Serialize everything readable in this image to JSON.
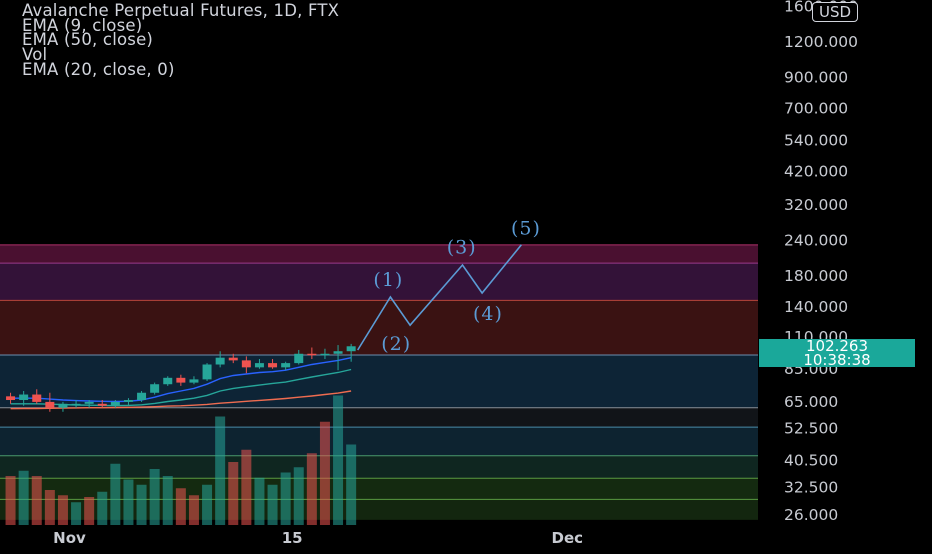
{
  "legend": {
    "title": "Avalanche Perpetual Futures, 1D, FTX",
    "ind1": "EMA (9, close)",
    "ind2": "EMA (50, close)",
    "ind3": "Vol",
    "ind4": "EMA (20, close, 0)"
  },
  "currency": "USD",
  "price_badge": {
    "price": "102.263",
    "countdown": "10:38:38"
  },
  "colors": {
    "up": "#26a69a",
    "down": "#ef5350",
    "ema_fast": "#2962ff",
    "ema_mid": "#26a69a",
    "ema_slow": "#ef6c50",
    "wave": "#5b9bd5"
  },
  "chart_data": {
    "type": "candlestick",
    "y_scale": "log",
    "y_ticks": [
      "1600.000",
      "1200.000",
      "900.000",
      "700.000",
      "540.000",
      "420.000",
      "320.000",
      "240.000",
      "180.000",
      "140.000",
      "110.000",
      "85.000",
      "65.000",
      "52.500",
      "40.500",
      "32.500",
      "26.000"
    ],
    "x_ticks": [
      {
        "label": "Nov",
        "day": 5
      },
      {
        "label": "15",
        "day": 22
      },
      {
        "label": "Dec",
        "day": 43
      }
    ],
    "bands": [
      {
        "from": 200,
        "to": 232,
        "color": "#4a1030"
      },
      {
        "from": 148,
        "to": 200,
        "color": "#331238"
      },
      {
        "from": 95,
        "to": 148,
        "color": "#3a1212"
      },
      {
        "from": 62,
        "to": 95,
        "color": "#0d2436"
      },
      {
        "from": 53,
        "to": 62,
        "color": "#111418"
      },
      {
        "from": 42,
        "to": 53,
        "color": "#0d2330"
      },
      {
        "from": 35,
        "to": 42,
        "color": "#0f2620"
      },
      {
        "from": 29.5,
        "to": 35,
        "color": "#142a10"
      },
      {
        "from": 25,
        "to": 29.5,
        "color": "#13260f"
      }
    ],
    "band_lines": [
      232,
      200,
      148,
      95,
      62,
      53,
      42,
      35,
      29.5
    ],
    "candles": [
      {
        "o": 68,
        "h": 70,
        "l": 64,
        "c": 66
      },
      {
        "o": 66,
        "h": 71,
        "l": 63,
        "c": 69
      },
      {
        "o": 69,
        "h": 72,
        "l": 64,
        "c": 65
      },
      {
        "o": 65,
        "h": 70,
        "l": 60,
        "c": 62
      },
      {
        "o": 62,
        "h": 65,
        "l": 60,
        "c": 64
      },
      {
        "o": 64,
        "h": 66,
        "l": 62,
        "c": 64
      },
      {
        "o": 64,
        "h": 66,
        "l": 62,
        "c": 65
      },
      {
        "o": 64,
        "h": 66,
        "l": 62,
        "c": 63
      },
      {
        "o": 63,
        "h": 66,
        "l": 62,
        "c": 65
      },
      {
        "o": 65,
        "h": 67,
        "l": 63,
        "c": 66
      },
      {
        "o": 66,
        "h": 71,
        "l": 65,
        "c": 70
      },
      {
        "o": 70,
        "h": 76,
        "l": 69,
        "c": 75
      },
      {
        "o": 75,
        "h": 80,
        "l": 74,
        "c": 79
      },
      {
        "o": 79,
        "h": 81,
        "l": 74,
        "c": 76
      },
      {
        "o": 76,
        "h": 80,
        "l": 75,
        "c": 78
      },
      {
        "o": 78,
        "h": 89,
        "l": 77,
        "c": 88
      },
      {
        "o": 88,
        "h": 98,
        "l": 86,
        "c": 93
      },
      {
        "o": 93,
        "h": 96,
        "l": 89,
        "c": 91
      },
      {
        "o": 91,
        "h": 94,
        "l": 82,
        "c": 86
      },
      {
        "o": 86,
        "h": 92,
        "l": 85,
        "c": 89
      },
      {
        "o": 89,
        "h": 92,
        "l": 85,
        "c": 86
      },
      {
        "o": 86,
        "h": 90,
        "l": 84,
        "c": 89
      },
      {
        "o": 89,
        "h": 99,
        "l": 88,
        "c": 96
      },
      {
        "o": 96,
        "h": 101,
        "l": 92,
        "c": 95
      },
      {
        "o": 95,
        "h": 100,
        "l": 92,
        "c": 96
      },
      {
        "o": 96,
        "h": 103,
        "l": 84,
        "c": 98
      },
      {
        "o": 98,
        "h": 104,
        "l": 90,
        "c": 102
      }
    ],
    "volume": [
      {
        "v": 28,
        "up": false
      },
      {
        "v": 31,
        "up": true
      },
      {
        "v": 28,
        "up": false
      },
      {
        "v": 20,
        "up": false
      },
      {
        "v": 17,
        "up": false
      },
      {
        "v": 13,
        "up": true
      },
      {
        "v": 16,
        "up": false
      },
      {
        "v": 19,
        "up": true
      },
      {
        "v": 35,
        "up": true
      },
      {
        "v": 26,
        "up": true
      },
      {
        "v": 23,
        "up": true
      },
      {
        "v": 32,
        "up": true
      },
      {
        "v": 28,
        "up": true
      },
      {
        "v": 21,
        "up": false
      },
      {
        "v": 17,
        "up": false
      },
      {
        "v": 23,
        "up": true
      },
      {
        "v": 62,
        "up": true
      },
      {
        "v": 36,
        "up": false
      },
      {
        "v": 43,
        "up": false
      },
      {
        "v": 27,
        "up": true
      },
      {
        "v": 23,
        "up": true
      },
      {
        "v": 30,
        "up": true
      },
      {
        "v": 33,
        "up": true
      },
      {
        "v": 41,
        "up": false
      },
      {
        "v": 59,
        "up": false
      },
      {
        "v": 74,
        "up": true
      },
      {
        "v": 46,
        "up": true
      }
    ],
    "ema_fast": [
      67,
      67,
      67,
      66.5,
      66,
      65.7,
      65.5,
      65.3,
      65.2,
      65.3,
      66,
      67.5,
      69.5,
      71,
      72.5,
      75,
      78.5,
      80.5,
      81.5,
      82.5,
      83,
      84,
      86,
      88,
      89.5,
      91,
      93
    ],
    "ema_mid": [
      64,
      64,
      64,
      63.8,
      63.6,
      63.4,
      63.3,
      63.2,
      63.1,
      63.2,
      63.5,
      64.2,
      65.2,
      66,
      67,
      68.5,
      71,
      72.5,
      73.5,
      74.5,
      75.5,
      76.3,
      78,
      79.5,
      81,
      82.5,
      84.5
    ],
    "ema_slow": [
      61.5,
      61.6,
      61.6,
      61.7,
      61.8,
      61.9,
      62,
      62,
      62.1,
      62.2,
      62.3,
      62.5,
      62.8,
      63,
      63.3,
      63.7,
      64.3,
      64.8,
      65.3,
      65.8,
      66.3,
      66.8,
      67.5,
      68.2,
      69,
      69.8,
      71
    ],
    "elliott_wave": [
      {
        "day": 27,
        "price": 99
      },
      {
        "day": 29.5,
        "price": 152
      },
      {
        "day": 31,
        "price": 121
      },
      {
        "day": 35,
        "price": 197
      },
      {
        "day": 36.5,
        "price": 157
      },
      {
        "day": 39.5,
        "price": 232
      }
    ],
    "wave_labels": [
      {
        "text": "(1)",
        "day": 28.2,
        "price": 166
      },
      {
        "text": "(2)",
        "day": 28.8,
        "price": 99
      },
      {
        "text": "(3)",
        "day": 33.8,
        "price": 216
      },
      {
        "text": "(4)",
        "day": 35.8,
        "price": 126
      },
      {
        "text": "(5)",
        "day": 38.7,
        "price": 252
      }
    ]
  }
}
